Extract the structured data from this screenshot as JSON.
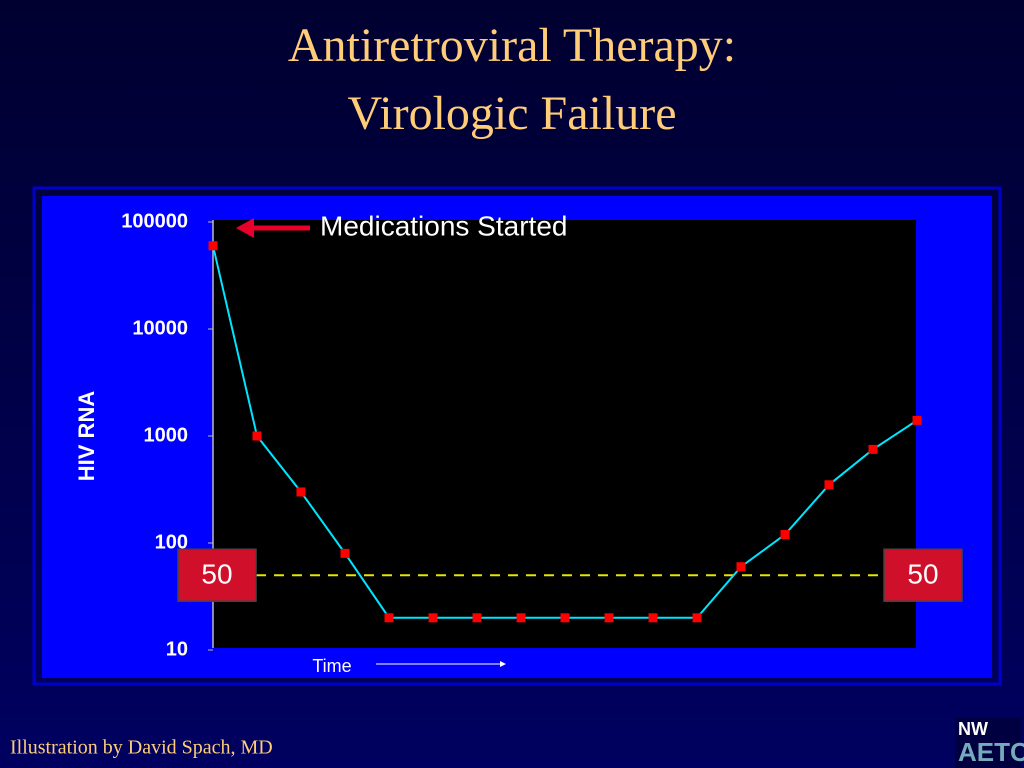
{
  "chart_data": {
    "type": "line",
    "title": [
      "Antiretroviral Therapy:",
      "Virologic Failure"
    ],
    "annotation": "Medications Started",
    "xlabel": "Time",
    "ylabel": "HIV RNA",
    "categories": [
      null,
      null,
      null,
      null,
      null,
      null,
      null,
      null,
      null,
      null,
      null,
      null,
      null,
      null,
      null,
      null,
      null
    ],
    "values": [
      60000,
      1000,
      300,
      80,
      20,
      20,
      20,
      20,
      20,
      20,
      20,
      20,
      60,
      120,
      350,
      750,
      1400
    ],
    "color": "#00e5ff",
    "marker_color": "#ff0000",
    "ylim": [
      10,
      100000
    ],
    "yticks": [
      10,
      100,
      1000,
      10000,
      100000
    ],
    "log_scale": true,
    "threshold": 50,
    "threshold_color": "#e6e600"
  },
  "footer": {
    "credit": "Illustration by David Spach, MD",
    "logo": [
      "NW",
      "AETC"
    ]
  }
}
